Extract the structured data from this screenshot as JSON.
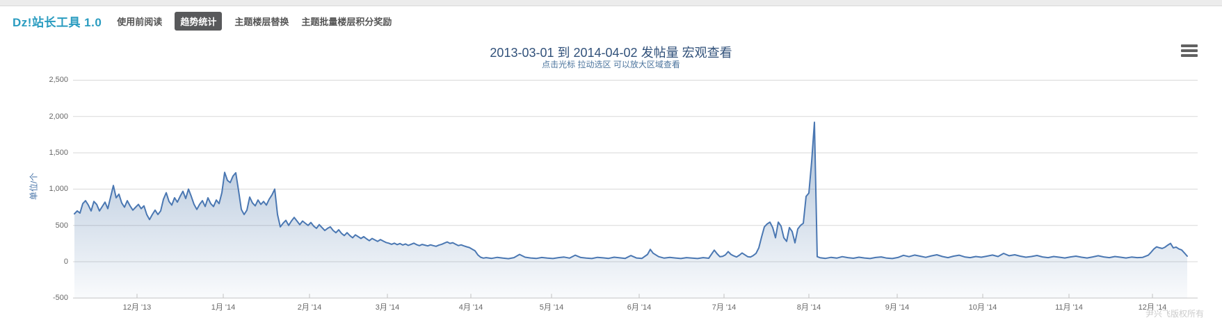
{
  "navbar": {
    "logo": "Dz!站长工具 1.0",
    "items": [
      {
        "label": "使用前阅读",
        "active": false
      },
      {
        "label": "趋势统计",
        "active": true
      },
      {
        "label": "主题楼层替换",
        "active": false
      },
      {
        "label": "主题批量楼层积分奖励",
        "active": false
      }
    ]
  },
  "chart": {
    "title": "2013-03-01 到 2014-04-02 发帖量 宏观查看",
    "subtitle": "点击光标 拉动选区 可以放大区域查看",
    "y_axis_title": "单位/个",
    "credits": "尹兴飞版权所有",
    "menu_icon": "hamburger-icon"
  },
  "colors": {
    "accent": "#2a9cc0",
    "nav_active_bg": "#58595b",
    "title": "#31517a",
    "subtitle": "#4d759e",
    "series_line": "#4a77b2",
    "series_fill": "#4572a7",
    "grid": "#d8d8d8",
    "axis_label": "#666666",
    "credits": "#cccccc"
  },
  "chart_data": {
    "type": "area",
    "title": "2013-03-01 到 2014-04-02 发帖量 宏观查看",
    "subtitle": "点击光标 拉动选区 可以放大区域查看",
    "ylabel": "单位/个",
    "ylim": [
      -500,
      2500
    ],
    "yticks": [
      -500,
      0,
      500,
      1000,
      1500,
      2000,
      2500
    ],
    "grid": true,
    "legend": false,
    "x_unit": "day index from series start (~early Nov 2013), ~daily posting counts",
    "x_ticks": [
      {
        "label": "12月 '13",
        "day": 22.5
      },
      {
        "label": "1月 '14",
        "day": 53.5
      },
      {
        "label": "2月 '14",
        "day": 84.5
      },
      {
        "label": "3月 '14",
        "day": 112.5
      },
      {
        "label": "4月 '14",
        "day": 142.5
      },
      {
        "label": "5月 '14",
        "day": 171.5
      },
      {
        "label": "6月 '14",
        "day": 203
      },
      {
        "label": "7月 '14",
        "day": 233.5
      },
      {
        "label": "8月 '14",
        "day": 264
      },
      {
        "label": "9月 '14",
        "day": 295.75
      },
      {
        "label": "10月 '14",
        "day": 326.5
      },
      {
        "label": "11月 '14",
        "day": 357.5
      },
      {
        "label": "12月 '14",
        "day": 387.5
      }
    ],
    "points": [
      [
        0,
        660
      ],
      [
        1,
        700
      ],
      [
        2,
        670
      ],
      [
        3,
        800
      ],
      [
        4,
        840
      ],
      [
        5,
        780
      ],
      [
        6,
        700
      ],
      [
        7,
        830
      ],
      [
        8,
        790
      ],
      [
        9,
        700
      ],
      [
        10,
        760
      ],
      [
        11,
        820
      ],
      [
        12,
        730
      ],
      [
        13,
        890
      ],
      [
        14,
        1050
      ],
      [
        15,
        880
      ],
      [
        16,
        930
      ],
      [
        17,
        810
      ],
      [
        18,
        750
      ],
      [
        19,
        840
      ],
      [
        20,
        770
      ],
      [
        21,
        710
      ],
      [
        22,
        750
      ],
      [
        23,
        790
      ],
      [
        24,
        730
      ],
      [
        25,
        770
      ],
      [
        26,
        650
      ],
      [
        27,
        580
      ],
      [
        28,
        650
      ],
      [
        29,
        710
      ],
      [
        30,
        650
      ],
      [
        31,
        700
      ],
      [
        32,
        860
      ],
      [
        33,
        950
      ],
      [
        34,
        830
      ],
      [
        35,
        780
      ],
      [
        36,
        880
      ],
      [
        37,
        820
      ],
      [
        38,
        900
      ],
      [
        39,
        970
      ],
      [
        40,
        870
      ],
      [
        41,
        1000
      ],
      [
        42,
        900
      ],
      [
        43,
        790
      ],
      [
        44,
        720
      ],
      [
        45,
        790
      ],
      [
        46,
        840
      ],
      [
        47,
        760
      ],
      [
        48,
        880
      ],
      [
        49,
        800
      ],
      [
        50,
        760
      ],
      [
        51,
        850
      ],
      [
        52,
        800
      ],
      [
        53,
        950
      ],
      [
        54,
        1230
      ],
      [
        55,
        1120
      ],
      [
        56,
        1090
      ],
      [
        57,
        1180
      ],
      [
        58,
        1225
      ],
      [
        59,
        980
      ],
      [
        60,
        720
      ],
      [
        61,
        650
      ],
      [
        62,
        710
      ],
      [
        63,
        890
      ],
      [
        64,
        810
      ],
      [
        65,
        770
      ],
      [
        66,
        850
      ],
      [
        67,
        790
      ],
      [
        68,
        830
      ],
      [
        69,
        780
      ],
      [
        70,
        860
      ],
      [
        71,
        920
      ],
      [
        72,
        1000
      ],
      [
        73,
        650
      ],
      [
        74,
        480
      ],
      [
        75,
        530
      ],
      [
        76,
        570
      ],
      [
        77,
        500
      ],
      [
        78,
        560
      ],
      [
        79,
        610
      ],
      [
        80,
        560
      ],
      [
        81,
        510
      ],
      [
        82,
        560
      ],
      [
        83,
        530
      ],
      [
        84,
        500
      ],
      [
        85,
        540
      ],
      [
        86,
        490
      ],
      [
        87,
        460
      ],
      [
        88,
        510
      ],
      [
        89,
        470
      ],
      [
        90,
        430
      ],
      [
        91,
        460
      ],
      [
        92,
        480
      ],
      [
        93,
        430
      ],
      [
        94,
        400
      ],
      [
        95,
        440
      ],
      [
        96,
        390
      ],
      [
        97,
        360
      ],
      [
        98,
        400
      ],
      [
        99,
        360
      ],
      [
        100,
        330
      ],
      [
        101,
        370
      ],
      [
        102,
        345
      ],
      [
        103,
        320
      ],
      [
        104,
        345
      ],
      [
        105,
        315
      ],
      [
        106,
        290
      ],
      [
        107,
        320
      ],
      [
        108,
        300
      ],
      [
        109,
        280
      ],
      [
        110,
        305
      ],
      [
        111,
        285
      ],
      [
        112,
        265
      ],
      [
        113,
        255
      ],
      [
        114,
        240
      ],
      [
        115,
        255
      ],
      [
        116,
        235
      ],
      [
        117,
        250
      ],
      [
        118,
        230
      ],
      [
        119,
        245
      ],
      [
        120,
        225
      ],
      [
        121,
        240
      ],
      [
        122,
        255
      ],
      [
        123,
        235
      ],
      [
        124,
        222
      ],
      [
        125,
        238
      ],
      [
        126,
        228
      ],
      [
        127,
        218
      ],
      [
        128,
        232
      ],
      [
        129,
        222
      ],
      [
        130,
        212
      ],
      [
        131,
        228
      ],
      [
        132,
        240
      ],
      [
        133,
        256
      ],
      [
        134,
        272
      ],
      [
        135,
        252
      ],
      [
        136,
        262
      ],
      [
        137,
        242
      ],
      [
        138,
        222
      ],
      [
        139,
        232
      ],
      [
        140,
        218
      ],
      [
        141,
        206
      ],
      [
        142,
        195
      ],
      [
        143,
        172
      ],
      [
        144,
        150
      ],
      [
        145,
        95
      ],
      [
        146,
        62
      ],
      [
        147,
        50
      ],
      [
        148,
        56
      ],
      [
        150,
        46
      ],
      [
        152,
        60
      ],
      [
        154,
        50
      ],
      [
        156,
        42
      ],
      [
        158,
        56
      ],
      [
        160,
        100
      ],
      [
        162,
        62
      ],
      [
        164,
        52
      ],
      [
        166,
        45
      ],
      [
        168,
        58
      ],
      [
        170,
        50
      ],
      [
        172,
        44
      ],
      [
        174,
        56
      ],
      [
        176,
        64
      ],
      [
        178,
        50
      ],
      [
        180,
        90
      ],
      [
        182,
        58
      ],
      [
        184,
        50
      ],
      [
        186,
        44
      ],
      [
        188,
        60
      ],
      [
        190,
        54
      ],
      [
        192,
        46
      ],
      [
        194,
        62
      ],
      [
        196,
        54
      ],
      [
        198,
        46
      ],
      [
        200,
        85
      ],
      [
        202,
        52
      ],
      [
        204,
        46
      ],
      [
        206,
        100
      ],
      [
        207,
        170
      ],
      [
        208,
        118
      ],
      [
        210,
        70
      ],
      [
        212,
        50
      ],
      [
        214,
        60
      ],
      [
        216,
        52
      ],
      [
        218,
        44
      ],
      [
        220,
        56
      ],
      [
        222,
        50
      ],
      [
        224,
        44
      ],
      [
        226,
        56
      ],
      [
        228,
        48
      ],
      [
        230,
        160
      ],
      [
        231,
        110
      ],
      [
        232,
        70
      ],
      [
        233,
        75
      ],
      [
        234,
        95
      ],
      [
        235,
        140
      ],
      [
        236,
        100
      ],
      [
        237,
        80
      ],
      [
        238,
        65
      ],
      [
        239,
        90
      ],
      [
        240,
        120
      ],
      [
        241,
        95
      ],
      [
        242,
        70
      ],
      [
        243,
        65
      ],
      [
        244,
        85
      ],
      [
        245,
        115
      ],
      [
        246,
        190
      ],
      [
        247,
        340
      ],
      [
        248,
        480
      ],
      [
        249,
        520
      ],
      [
        250,
        545
      ],
      [
        251,
        470
      ],
      [
        252,
        330
      ],
      [
        253,
        545
      ],
      [
        254,
        490
      ],
      [
        255,
        330
      ],
      [
        256,
        280
      ],
      [
        257,
        470
      ],
      [
        258,
        415
      ],
      [
        259,
        260
      ],
      [
        260,
        450
      ],
      [
        261,
        500
      ],
      [
        262,
        530
      ],
      [
        263,
        900
      ],
      [
        264,
        945
      ],
      [
        265,
        1380
      ],
      [
        266,
        1920
      ],
      [
        267,
        70
      ],
      [
        268,
        55
      ],
      [
        270,
        46
      ],
      [
        272,
        60
      ],
      [
        274,
        50
      ],
      [
        276,
        70
      ],
      [
        278,
        56
      ],
      [
        280,
        48
      ],
      [
        282,
        62
      ],
      [
        284,
        52
      ],
      [
        286,
        44
      ],
      [
        288,
        58
      ],
      [
        290,
        66
      ],
      [
        292,
        50
      ],
      [
        294,
        44
      ],
      [
        296,
        58
      ],
      [
        298,
        88
      ],
      [
        300,
        70
      ],
      [
        302,
        92
      ],
      [
        304,
        76
      ],
      [
        306,
        60
      ],
      [
        308,
        80
      ],
      [
        310,
        96
      ],
      [
        312,
        72
      ],
      [
        314,
        56
      ],
      [
        316,
        76
      ],
      [
        318,
        90
      ],
      [
        320,
        66
      ],
      [
        322,
        56
      ],
      [
        324,
        72
      ],
      [
        326,
        62
      ],
      [
        328,
        76
      ],
      [
        330,
        92
      ],
      [
        332,
        72
      ],
      [
        334,
        115
      ],
      [
        336,
        82
      ],
      [
        338,
        96
      ],
      [
        340,
        76
      ],
      [
        342,
        62
      ],
      [
        344,
        72
      ],
      [
        346,
        86
      ],
      [
        348,
        66
      ],
      [
        350,
        56
      ],
      [
        352,
        72
      ],
      [
        354,
        62
      ],
      [
        356,
        52
      ],
      [
        358,
        66
      ],
      [
        360,
        76
      ],
      [
        362,
        62
      ],
      [
        364,
        52
      ],
      [
        366,
        66
      ],
      [
        368,
        82
      ],
      [
        370,
        66
      ],
      [
        372,
        56
      ],
      [
        374,
        72
      ],
      [
        376,
        62
      ],
      [
        378,
        52
      ],
      [
        380,
        64
      ],
      [
        382,
        56
      ],
      [
        384,
        60
      ],
      [
        386,
        90
      ],
      [
        387,
        130
      ],
      [
        388,
        175
      ],
      [
        389,
        205
      ],
      [
        390,
        192
      ],
      [
        391,
        183
      ],
      [
        392,
        200
      ],
      [
        393,
        228
      ],
      [
        394,
        252
      ],
      [
        395,
        190
      ],
      [
        396,
        202
      ],
      [
        397,
        176
      ],
      [
        398,
        162
      ],
      [
        399,
        120
      ],
      [
        400,
        76
      ]
    ]
  }
}
